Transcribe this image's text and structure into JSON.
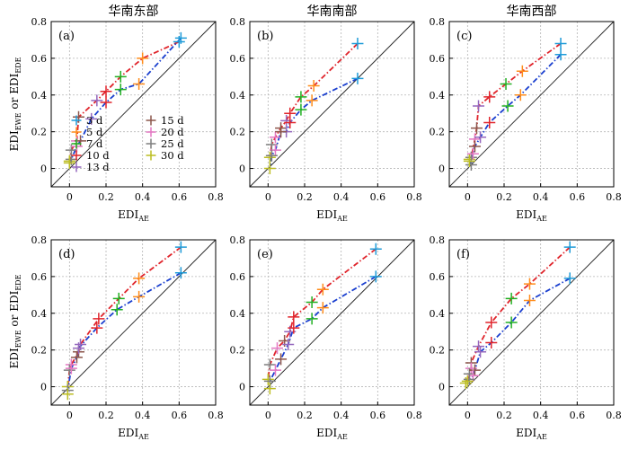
{
  "figure": {
    "y_axis_label_main": "EDI",
    "y_axis_label_sub1": "EWE",
    "y_axis_label_mid": " or EDI",
    "y_axis_label_sub2": "EDE",
    "colors": {
      "3 d": "#1f9bd8",
      "5 d": "#ff8c1a",
      "7 d": "#22b022",
      "10 d": "#e0242b",
      "13 d": "#9467bd",
      "15 d": "#8c564b",
      "20 d": "#e377c2",
      "25 d": "#7f7f7f",
      "30 d": "#bcbd22",
      "ewe_line": "#e0242b",
      "ede_line": "#1a3fcf"
    }
  },
  "legend": {
    "entries": [
      "3 d",
      "5 d",
      "7 d",
      "10 d",
      "13 d",
      "15 d",
      "20 d",
      "25 d",
      "30 d"
    ]
  },
  "chart_data": [
    {
      "type": "scatter",
      "panel": "(a)",
      "title": "华南东部",
      "xlabel_main": "EDI",
      "xlabel_sub": "AE",
      "xlim": [
        -0.1,
        0.8
      ],
      "ylim": [
        -0.1,
        0.8
      ],
      "xticks": [
        0,
        0.2,
        0.4,
        0.6,
        0.8
      ],
      "yticks": [
        0,
        0.2,
        0.4,
        0.6,
        0.8
      ],
      "durations": [
        "3 d",
        "5 d",
        "7 d",
        "10 d",
        "13 d",
        "15 d",
        "20 d",
        "25 d",
        "30 d"
      ],
      "series": [
        {
          "name": "EDI EWE",
          "x": [
            0.6,
            0.4,
            0.28,
            0.2,
            0.15,
            0.05,
            0.04,
            0.01,
            0.0
          ],
          "y": [
            0.69,
            0.6,
            0.5,
            0.42,
            0.37,
            0.28,
            0.15,
            0.1,
            0.04
          ]
        },
        {
          "name": "EDI EDE",
          "x": [
            0.61,
            0.38,
            0.28,
            0.2,
            0.12,
            0.06,
            0.04,
            0.01,
            0.0
          ],
          "y": [
            0.71,
            0.46,
            0.43,
            0.36,
            0.27,
            0.15,
            0.12,
            0.05,
            0.03
          ]
        }
      ]
    },
    {
      "type": "scatter",
      "panel": "(b)",
      "title": "华南南部",
      "xlabel_main": "EDI",
      "xlabel_sub": "AE",
      "xlim": [
        -0.1,
        0.8
      ],
      "ylim": [
        -0.1,
        0.8
      ],
      "xticks": [
        0,
        0.2,
        0.4,
        0.6,
        0.8
      ],
      "yticks": [
        0,
        0.2,
        0.4,
        0.6,
        0.8
      ],
      "durations": [
        "3 d",
        "5 d",
        "7 d",
        "10 d",
        "13 d",
        "15 d",
        "20 d",
        "25 d",
        "30 d"
      ],
      "series": [
        {
          "name": "EDI EWE",
          "x": [
            0.49,
            0.25,
            0.18,
            0.12,
            0.1,
            0.07,
            0.04,
            0.02,
            0.01
          ],
          "y": [
            0.68,
            0.45,
            0.39,
            0.3,
            0.26,
            0.22,
            0.17,
            0.13,
            0.06
          ]
        },
        {
          "name": "EDI EDE",
          "x": [
            0.49,
            0.24,
            0.18,
            0.12,
            0.1,
            0.07,
            0.04,
            0.02,
            0.01
          ],
          "y": [
            0.49,
            0.37,
            0.32,
            0.25,
            0.2,
            0.2,
            0.1,
            0.07,
            0.0
          ]
        }
      ]
    },
    {
      "type": "scatter",
      "panel": "(c)",
      "title": "华南西部",
      "xlabel_main": "EDI",
      "xlabel_sub": "AE",
      "xlim": [
        -0.1,
        0.8
      ],
      "ylim": [
        -0.1,
        0.8
      ],
      "xticks": [
        0,
        0.2,
        0.4,
        0.6,
        0.8
      ],
      "yticks": [
        0,
        0.2,
        0.4,
        0.6,
        0.8
      ],
      "durations": [
        "3 d",
        "5 d",
        "7 d",
        "10 d",
        "13 d",
        "15 d",
        "20 d",
        "25 d",
        "30 d"
      ],
      "series": [
        {
          "name": "EDI EWE",
          "x": [
            0.51,
            0.3,
            0.21,
            0.12,
            0.06,
            0.05,
            0.04,
            0.02,
            0.01
          ],
          "y": [
            0.68,
            0.53,
            0.46,
            0.39,
            0.34,
            0.22,
            0.16,
            0.06,
            0.05
          ]
        },
        {
          "name": "EDI EDE",
          "x": [
            0.51,
            0.29,
            0.22,
            0.12,
            0.07,
            0.04,
            0.03,
            0.02,
            0.01
          ],
          "y": [
            0.62,
            0.4,
            0.34,
            0.25,
            0.17,
            0.12,
            0.08,
            0.02,
            0.04
          ]
        }
      ]
    },
    {
      "type": "scatter",
      "panel": "(d)",
      "title": "",
      "xlabel_main": "EDI",
      "xlabel_sub": "AE",
      "xlim": [
        -0.1,
        0.8
      ],
      "ylim": [
        -0.1,
        0.8
      ],
      "xticks": [
        0,
        0.2,
        0.4,
        0.6,
        0.8
      ],
      "yticks": [
        0,
        0.2,
        0.4,
        0.6,
        0.8
      ],
      "durations": [
        "3 d",
        "5 d",
        "7 d",
        "10 d",
        "13 d",
        "15 d",
        "20 d",
        "25 d",
        "30 d"
      ],
      "series": [
        {
          "name": "EDI EWE",
          "x": [
            0.61,
            0.38,
            0.27,
            0.16,
            0.06,
            0.05,
            0.01,
            0.0,
            -0.01
          ],
          "y": [
            0.76,
            0.59,
            0.48,
            0.37,
            0.23,
            0.19,
            0.12,
            0.09,
            0.0
          ]
        },
        {
          "name": "EDI EDE",
          "x": [
            0.61,
            0.38,
            0.26,
            0.15,
            0.05,
            0.04,
            0.01,
            -0.01,
            -0.01
          ],
          "y": [
            0.62,
            0.49,
            0.42,
            0.32,
            0.21,
            0.16,
            0.1,
            -0.02,
            -0.04
          ]
        }
      ]
    },
    {
      "type": "scatter",
      "panel": "(e)",
      "title": "",
      "xlabel_main": "EDI",
      "xlabel_sub": "AE",
      "xlim": [
        -0.1,
        0.8
      ],
      "ylim": [
        -0.1,
        0.8
      ],
      "xticks": [
        0,
        0.2,
        0.4,
        0.6,
        0.8
      ],
      "yticks": [
        0,
        0.2,
        0.4,
        0.6,
        0.8
      ],
      "durations": [
        "3 d",
        "5 d",
        "7 d",
        "10 d",
        "13 d",
        "15 d",
        "20 d",
        "25 d",
        "30 d"
      ],
      "series": [
        {
          "name": "EDI EWE",
          "x": [
            0.59,
            0.3,
            0.24,
            0.14,
            0.12,
            0.09,
            0.05,
            0.01,
            0.0
          ],
          "y": [
            0.75,
            0.53,
            0.46,
            0.38,
            0.3,
            0.25,
            0.21,
            0.12,
            0.04
          ]
        },
        {
          "name": "EDI EDE",
          "x": [
            0.59,
            0.3,
            0.24,
            0.14,
            0.11,
            0.07,
            0.04,
            0.01,
            0.01
          ],
          "y": [
            0.6,
            0.43,
            0.37,
            0.32,
            0.23,
            0.15,
            0.09,
            0.03,
            -0.01
          ]
        }
      ]
    },
    {
      "type": "scatter",
      "panel": "(f)",
      "title": "",
      "xlabel_main": "EDI",
      "xlabel_sub": "AE",
      "xlim": [
        -0.1,
        0.8
      ],
      "ylim": [
        -0.1,
        0.8
      ],
      "xticks": [
        0,
        0.2,
        0.4,
        0.6,
        0.8
      ],
      "yticks": [
        0,
        0.2,
        0.4,
        0.6,
        0.8
      ],
      "durations": [
        "3 d",
        "5 d",
        "7 d",
        "10 d",
        "13 d",
        "15 d",
        "20 d",
        "25 d",
        "30 d"
      ],
      "series": [
        {
          "name": "EDI EWE",
          "x": [
            0.56,
            0.34,
            0.24,
            0.13,
            0.06,
            0.02,
            0.02,
            0.01,
            -0.01
          ],
          "y": [
            0.76,
            0.56,
            0.48,
            0.35,
            0.22,
            0.13,
            0.1,
            0.07,
            0.02
          ]
        },
        {
          "name": "EDI EDE",
          "x": [
            0.56,
            0.34,
            0.24,
            0.13,
            0.07,
            0.04,
            0.03,
            0.01,
            0.0
          ],
          "y": [
            0.59,
            0.47,
            0.35,
            0.24,
            0.19,
            0.09,
            0.06,
            0.04,
            0.03
          ]
        }
      ]
    }
  ]
}
